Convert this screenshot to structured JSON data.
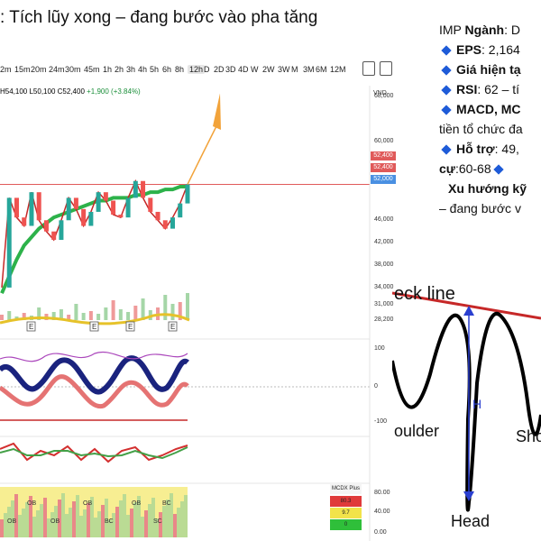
{
  "title": ": Tích lũy xong – đang bước vào pha tăng",
  "info_panel": {
    "line1_prefix": "IMP ",
    "line1_bold": "Ngành",
    "line1_rest": ": D",
    "eps_label": "EPS",
    "eps_value": ": 2,164",
    "price_label": "Giá hiện tạ",
    "rsi_label": "RSI",
    "rsi_value": ": 62 – tí",
    "macd_label": "MACD, MC",
    "macd_cont": "tiền tổ chức đa",
    "support_label": "Hỗ trợ",
    "support_value": ": 49,",
    "resistance_label": "cự",
    "resistance_value": ":60-68",
    "trend_label": "Xu hướng kỹ",
    "trend_value": "– đang bước v"
  },
  "toolbar": {
    "timeframes": [
      "2m",
      "15m",
      "20m",
      "24m",
      "30m",
      "45m",
      "1h",
      "2h",
      "3h",
      "4h",
      "5h",
      "6h",
      "8h",
      "12h",
      "D",
      "2D",
      "3D",
      "4D",
      "W",
      "2W",
      "3W",
      "M",
      "3M",
      "6M",
      "12M"
    ],
    "active": "12h",
    "icons": [
      "candle-type-icon",
      "compare-icon"
    ]
  },
  "ohlc": {
    "high": "H54,100",
    "low": "L50,100",
    "close": "C52,400",
    "change": "+1,900 (+3.84%)"
  },
  "currency": "VND",
  "price_ticks": [
    "68,000",
    "60,000",
    "52,400",
    "52,400",
    "52,000",
    "46,000",
    "42,000",
    "38,000",
    "34,000",
    "31,000",
    "28,200"
  ],
  "osc_ticks": [
    "100",
    "0",
    "-100"
  ],
  "mcdx_ticks": [
    "80.00",
    "40.00",
    "0.00"
  ],
  "mcdx_legend": {
    "title": "MCDX Plus",
    "values": [
      "80.3",
      "9.7",
      "0"
    ],
    "colors": [
      "#e03a3a",
      "#f2e34a",
      "#2fbf3a"
    ]
  },
  "event_markers": [
    "E",
    "E",
    "E",
    "E"
  ],
  "mcdx_labels": [
    "OB",
    "OB",
    "OB",
    "OB",
    "BC",
    "OB",
    "SC",
    "BC"
  ],
  "hs_labels": {
    "neckline": "eck line",
    "shoulder_left": "oulder",
    "head": "Head",
    "shoulder_right": "Sho",
    "height": "H"
  },
  "colors": {
    "up_candle": "#26a69a",
    "down_candle": "#ef5350",
    "forecast_arrow": "#f2a33a",
    "ma_long": "#2db24a",
    "resistance_line": "#e05a5a",
    "diamond": "#1e5bd8"
  },
  "chart_data": {
    "type": "line",
    "title": "",
    "ylabel": "",
    "ylim": [
      28200,
      70000
    ],
    "series": [
      {
        "values": [
          34000,
          50000,
          46500,
          45000,
          51000,
          46000,
          44000,
          42500,
          46000,
          50000,
          48000,
          45000,
          47500,
          51000,
          49500,
          47000,
          46500,
          50000,
          53000,
          50000,
          47500,
          46000,
          44500,
          46500,
          49000,
          52400
        ]
      },
      {
        "values": [
          33000,
          36000,
          39000,
          41500,
          43000,
          44500,
          45500,
          46500,
          47000,
          47500,
          48000,
          48500,
          49000,
          49500,
          49500,
          50000,
          50000,
          50000,
          50500,
          50500,
          51000,
          51000,
          51500,
          51500,
          52000,
          52000
        ]
      }
    ],
    "annotations": [
      {
        "type": "resistance",
        "value": 52400
      },
      {
        "type": "projection",
        "from": 52400,
        "to": 68000
      }
    ]
  }
}
